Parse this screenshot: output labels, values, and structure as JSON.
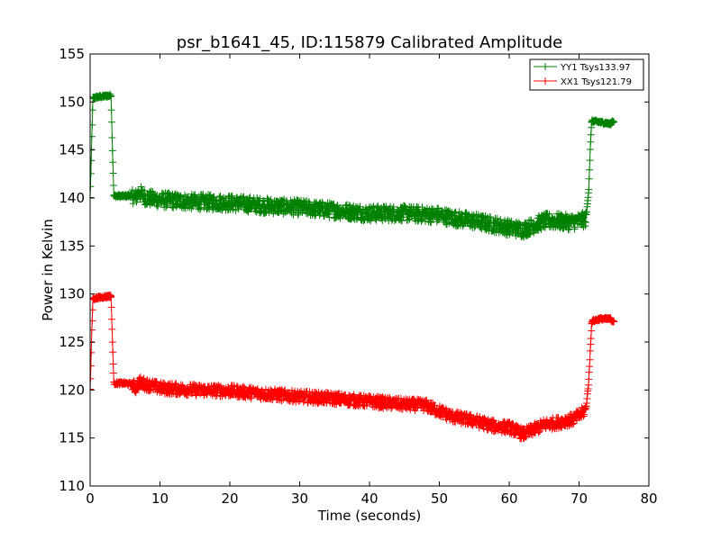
{
  "chart_data": {
    "type": "line",
    "title": "psr_b1641_45, ID:115879 Calibrated Amplitude",
    "xlabel": "Time (seconds)",
    "ylabel": "Power in Kelvin",
    "xlim": [
      0,
      80
    ],
    "ylim": [
      110,
      155
    ],
    "xticks": [
      0,
      10,
      20,
      30,
      40,
      50,
      60,
      70,
      80
    ],
    "yticks": [
      110,
      115,
      120,
      125,
      130,
      135,
      140,
      145,
      150,
      155
    ],
    "grid": false,
    "legend_position": "top-right",
    "marker": "+",
    "series": [
      {
        "name": "YY1 Tsys133.97",
        "color": "#008000",
        "noise": 0.8,
        "x": [
          0.0,
          0.2,
          0.4,
          1.0,
          2.0,
          3.0,
          3.2,
          3.4,
          4.0,
          5.0,
          6.0,
          6.5,
          7.0,
          8.0,
          10.0,
          15.0,
          20.0,
          25.0,
          30.0,
          35.0,
          40.0,
          45.0,
          50.0,
          52.0,
          55.0,
          58.0,
          60.0,
          62.0,
          63.0,
          65.0,
          67.0,
          68.0,
          69.0,
          70.0,
          71.0,
          71.4,
          71.6,
          71.8,
          72.0,
          73.0,
          74.0,
          74.5,
          74.8,
          75.0
        ],
        "y": [
          140.0,
          145.0,
          150.4,
          150.5,
          150.6,
          150.7,
          145.0,
          140.2,
          140.2,
          140.2,
          140.3,
          140.0,
          140.6,
          140.0,
          139.8,
          139.6,
          139.5,
          139.2,
          139.0,
          138.7,
          138.4,
          138.4,
          138.2,
          137.9,
          137.6,
          137.2,
          136.9,
          136.7,
          137.0,
          137.6,
          137.6,
          137.5,
          137.5,
          137.6,
          137.8,
          141.0,
          145.0,
          148.0,
          148.0,
          147.9,
          147.8,
          147.7,
          148.0,
          148.0
        ]
      },
      {
        "name": "XX1 Tsys121.79",
        "color": "#ff0000",
        "noise": 0.6,
        "x": [
          0.0,
          0.2,
          0.4,
          1.0,
          2.0,
          3.0,
          3.2,
          3.4,
          4.0,
          5.0,
          6.0,
          6.5,
          7.0,
          8.0,
          10.0,
          15.0,
          20.0,
          25.0,
          30.0,
          35.0,
          40.0,
          45.0,
          48.0,
          50.0,
          52.0,
          55.0,
          58.0,
          60.0,
          62.0,
          63.0,
          65.0,
          67.0,
          68.0,
          69.0,
          70.0,
          71.0,
          71.4,
          71.6,
          71.8,
          72.0,
          73.0,
          74.0,
          74.5,
          74.8,
          75.0
        ],
        "y": [
          120.0,
          125.0,
          129.5,
          129.6,
          129.7,
          129.8,
          125.0,
          120.7,
          120.7,
          120.7,
          120.6,
          120.2,
          120.8,
          120.6,
          120.2,
          120.0,
          119.9,
          119.6,
          119.3,
          119.1,
          118.8,
          118.5,
          118.4,
          117.8,
          117.2,
          116.8,
          116.2,
          116.1,
          115.4,
          115.7,
          116.4,
          116.6,
          116.8,
          116.9,
          117.3,
          118.0,
          121.0,
          124.0,
          127.0,
          127.2,
          127.4,
          127.4,
          127.4,
          127.2,
          127.2
        ]
      }
    ]
  }
}
